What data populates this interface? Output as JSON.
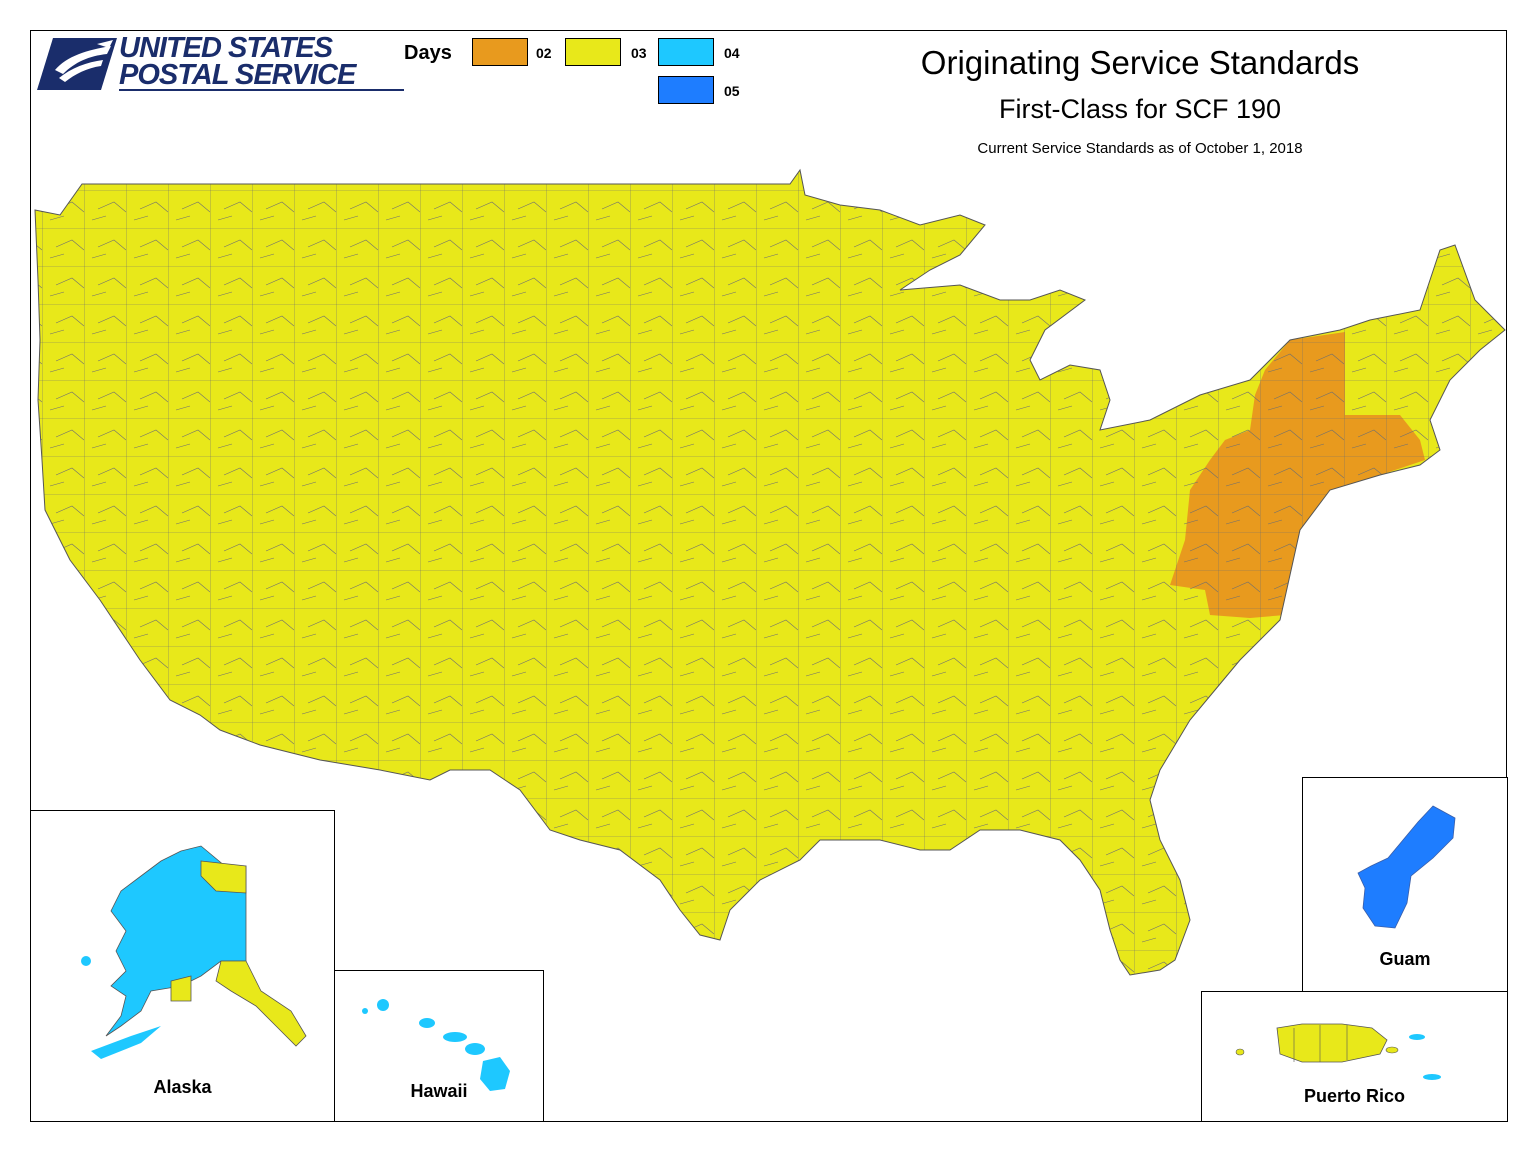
{
  "header": {
    "logo_line1": "UNITED STATES",
    "logo_line2": "POSTAL SERVICE",
    "logo_icon": "eagle-icon",
    "title": "Originating Service Standards",
    "subtitle": "First-Class for SCF 190",
    "note": "Current Service Standards as of October 1, 2018"
  },
  "legend": {
    "title": "Days",
    "items": [
      {
        "label": "02",
        "color": "#e89a1e"
      },
      {
        "label": "03",
        "color": "#e8e81a"
      },
      {
        "label": "04",
        "color": "#1ec8ff"
      },
      {
        "label": "05",
        "color": "#1e7dff"
      }
    ]
  },
  "insets": {
    "alaska": {
      "label": "Alaska",
      "primary_days": "04"
    },
    "hawaii": {
      "label": "Hawaii",
      "days": "04"
    },
    "guam": {
      "label": "Guam",
      "days": "05"
    },
    "puerto_rico": {
      "label": "Puerto Rico",
      "days": "03"
    }
  },
  "contiguous_us": {
    "primary_days": "03",
    "two_day_region_days": "02"
  }
}
